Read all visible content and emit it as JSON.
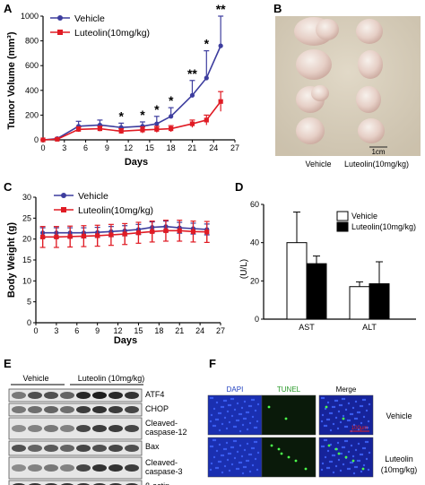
{
  "panels": {
    "A": "A",
    "B": "B",
    "C": "C",
    "D": "D",
    "E": "E",
    "F": "F"
  },
  "colors": {
    "vehicle": "#3d3d9e",
    "luteolin": "#e01b24",
    "black": "#000000"
  },
  "chart_data": [
    {
      "id": "A",
      "type": "line",
      "xlabel": "Days",
      "ylabel": "Tumor Volume (mm³)",
      "xlim": [
        0,
        27
      ],
      "ylim": [
        0,
        1000
      ],
      "xticks": [
        "0",
        "3",
        "6",
        "9",
        "12",
        "15",
        "18",
        "21",
        "24",
        "27"
      ],
      "yticks": [
        "0",
        "200",
        "400",
        "600",
        "800",
        "1000"
      ],
      "x": [
        0,
        2,
        5,
        8,
        11,
        14,
        16,
        18,
        21,
        23,
        25
      ],
      "series": [
        {
          "name": "Vehicle",
          "marker": "circle",
          "values": [
            0,
            10,
            110,
            120,
            100,
            110,
            130,
            190,
            360,
            500,
            760
          ],
          "errors": [
            0,
            5,
            40,
            40,
            35,
            35,
            60,
            70,
            120,
            220,
            240
          ]
        },
        {
          "name": "Luteolin(10mg/kg)",
          "marker": "square",
          "values": [
            0,
            5,
            85,
            90,
            70,
            80,
            85,
            90,
            130,
            160,
            310
          ],
          "errors": [
            0,
            5,
            20,
            20,
            20,
            25,
            25,
            25,
            30,
            40,
            80
          ]
        }
      ],
      "annotations": [
        {
          "x": 11,
          "text": "*"
        },
        {
          "x": 14,
          "text": "*"
        },
        {
          "x": 16,
          "text": "*"
        },
        {
          "x": 18,
          "text": "*"
        },
        {
          "x": 21,
          "text": "**"
        },
        {
          "x": 23,
          "text": "*"
        },
        {
          "x": 25,
          "text": "**"
        }
      ]
    },
    {
      "id": "C",
      "type": "line",
      "xlabel": "Days",
      "ylabel": "Body Weight (g)",
      "xlim": [
        0,
        27
      ],
      "ylim": [
        0,
        30
      ],
      "xticks": [
        "0",
        "3",
        "6",
        "9",
        "12",
        "15",
        "18",
        "21",
        "24",
        "27"
      ],
      "yticks": [
        "0",
        "5",
        "10",
        "15",
        "20",
        "25",
        "30"
      ],
      "x": [
        1,
        3,
        5,
        7,
        9,
        11,
        13,
        15,
        17,
        19,
        21,
        23,
        25
      ],
      "series": [
        {
          "name": "Vehicle",
          "marker": "circle",
          "values": [
            21.5,
            21.5,
            21.5,
            21.5,
            21.6,
            21.8,
            22.0,
            22.3,
            22.8,
            23.0,
            22.7,
            22.5,
            22.3
          ],
          "errors": [
            1.2,
            1.2,
            1.2,
            1.2,
            1.2,
            1.2,
            1.2,
            1.2,
            1.3,
            1.3,
            1.3,
            1.3,
            1.3
          ]
        },
        {
          "name": "Luteolin(10mg/kg)",
          "marker": "square",
          "values": [
            20.5,
            20.5,
            20.6,
            20.7,
            20.8,
            21.0,
            21.2,
            21.5,
            21.8,
            22.0,
            22.0,
            21.8,
            21.7
          ],
          "errors": [
            2.5,
            2.5,
            2.5,
            2.5,
            2.5,
            2.5,
            2.5,
            2.5,
            2.5,
            2.5,
            2.5,
            2.5,
            2.5
          ]
        }
      ]
    },
    {
      "id": "D",
      "type": "bar",
      "ylabel": "(U/L)",
      "categories": [
        "AST",
        "ALT"
      ],
      "ylim": [
        0,
        60
      ],
      "yticks": [
        "0",
        "20",
        "40",
        "60"
      ],
      "series": [
        {
          "name": "Vehicle",
          "fill": "white",
          "values": [
            40,
            17
          ],
          "errors": [
            16,
            2.5
          ]
        },
        {
          "name": "Luteolin(10mg/kg)",
          "fill": "black",
          "values": [
            29,
            18.5
          ],
          "errors": [
            4,
            11.5
          ]
        }
      ]
    }
  ],
  "photo_b": {
    "scale": "1cm",
    "labels": [
      "Vehicle",
      "Luteolin(10mg/kg)"
    ]
  },
  "blot_e": {
    "groups": [
      "Vehicle",
      "Luteolin (10mg/kg)"
    ],
    "rows": [
      "ATF4",
      "CHOP",
      "Cleaved-\ncaspase-12",
      "Bax",
      "Cleaved-\ncaspase-3",
      "β-actin"
    ]
  },
  "micro_f": {
    "columns": [
      "DAPI",
      "TUNEL",
      "Merge"
    ],
    "rows": [
      "Vehicle",
      "Luteolin\n(10mg/kg)"
    ],
    "scale": "100µm"
  }
}
